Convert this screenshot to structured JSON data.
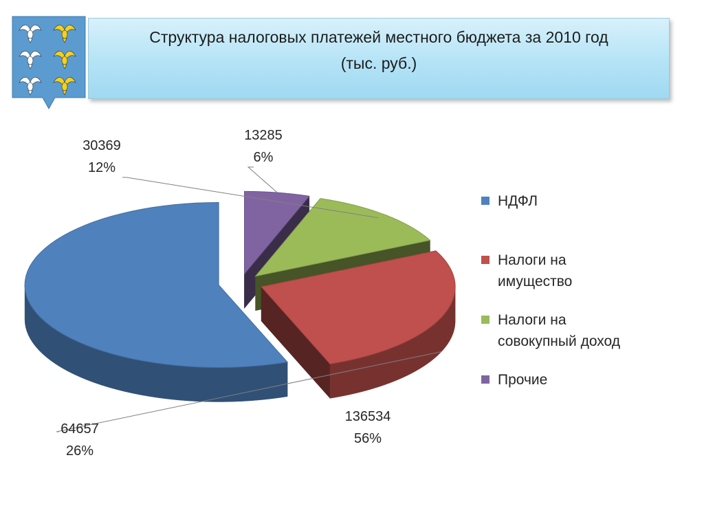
{
  "header": {
    "title_line1": "Структура налоговых платежей местного бюджета за 2010 год",
    "title_line2": "(тыс. руб.)"
  },
  "crest": {
    "icon": "coat-of-arms-doves-icon",
    "background": "#5b9bd0",
    "birds": [
      "white",
      "gold",
      "white",
      "gold",
      "white",
      "gold"
    ]
  },
  "chart_data": {
    "type": "pie",
    "style": "3d-exploded",
    "categories": [
      "НДФЛ",
      "Налоги на имущество",
      "Налоги на совокупный доход",
      "Прочие"
    ],
    "values": [
      136534,
      64657,
      30369,
      13285
    ],
    "percent_labels": [
      "56%",
      "26%",
      "12%",
      "6%"
    ],
    "colors": [
      "#4f81bd",
      "#c0504d",
      "#9bbb59",
      "#8064a2"
    ],
    "legend": {
      "position": "right",
      "lines": [
        [
          "НДФЛ"
        ],
        [
          "Налоги на",
          "имущество"
        ],
        [
          "Налоги на",
          "совокупный доход"
        ],
        [
          "Прочие"
        ]
      ]
    }
  }
}
